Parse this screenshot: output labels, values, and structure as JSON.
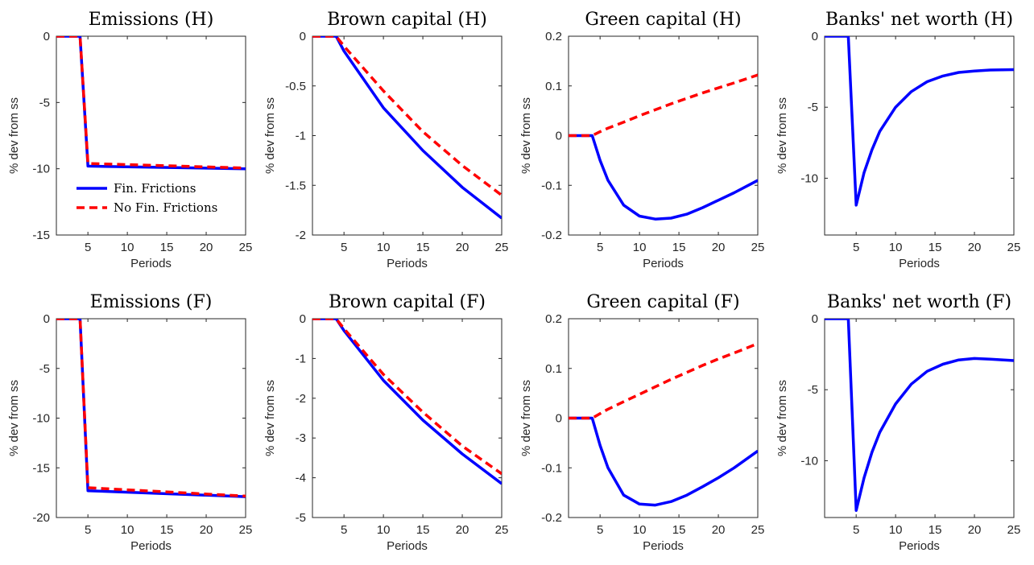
{
  "figure": {
    "series_styles": [
      {
        "name": "Fin. Frictions",
        "color": "#0000ff",
        "dash": "none"
      },
      {
        "name": "No Fin. Frictions",
        "color": "#ff0000",
        "dash": "10,6"
      }
    ],
    "legend": {
      "placement": "lower-left",
      "entries": [
        "Fin. Frictions",
        "No Fin. Frictions"
      ]
    }
  },
  "chart_data": [
    {
      "type": "line",
      "title": "Emissions (H)",
      "xlabel": "Periods",
      "ylabel": "% dev from ss",
      "xlim": [
        1,
        25
      ],
      "ylim": [
        -15,
        0
      ],
      "xticks": [
        5,
        10,
        15,
        20,
        25
      ],
      "yticks": [
        0,
        -5,
        -10,
        -15
      ],
      "legend": "lower-left",
      "x": [
        1,
        4,
        5,
        25
      ],
      "series": [
        {
          "name": "Fin. Frictions",
          "color": "#0000ff",
          "values": [
            0,
            0,
            -9.8,
            -10.0
          ]
        },
        {
          "name": "No Fin. Frictions",
          "color": "#ff0000",
          "dashed": true,
          "values": [
            0,
            0,
            -9.6,
            -9.95
          ]
        }
      ]
    },
    {
      "type": "line",
      "title": "Brown capital (H)",
      "xlabel": "Periods",
      "ylabel": "% dev from ss",
      "xlim": [
        1,
        25
      ],
      "ylim": [
        -2,
        0
      ],
      "xticks": [
        5,
        10,
        15,
        20,
        25
      ],
      "yticks": [
        0,
        -0.5,
        -1,
        -1.5,
        -2
      ],
      "x": [
        1,
        4,
        5,
        10,
        15,
        20,
        25
      ],
      "series": [
        {
          "name": "Fin. Frictions",
          "color": "#0000ff",
          "values": [
            0,
            0,
            -0.15,
            -0.72,
            -1.15,
            -1.52,
            -1.83
          ]
        },
        {
          "name": "No Fin. Frictions",
          "color": "#ff0000",
          "dashed": true,
          "values": [
            0,
            0,
            -0.1,
            -0.55,
            -0.96,
            -1.3,
            -1.6
          ]
        }
      ]
    },
    {
      "type": "line",
      "title": "Green capital (H)",
      "xlabel": "Periods",
      "ylabel": "% dev from ss",
      "xlim": [
        1,
        25
      ],
      "ylim": [
        -0.2,
        0.2
      ],
      "xticks": [
        5,
        10,
        15,
        20,
        25
      ],
      "yticks": [
        0.2,
        0.1,
        0,
        -0.1,
        -0.2
      ],
      "x": [
        1,
        4,
        5,
        6,
        8,
        10,
        12,
        14,
        16,
        18,
        20,
        22,
        25
      ],
      "series": [
        {
          "name": "Fin. Frictions",
          "color": "#0000ff",
          "values": [
            0,
            0,
            -0.05,
            -0.09,
            -0.14,
            -0.162,
            -0.168,
            -0.166,
            -0.158,
            -0.145,
            -0.13,
            -0.115,
            -0.09
          ]
        },
        {
          "name": "No Fin. Frictions",
          "color": "#ff0000",
          "dashed": true,
          "values": [
            0,
            0,
            0.008,
            0.015,
            0.027,
            0.04,
            0.052,
            0.064,
            0.075,
            0.086,
            0.096,
            0.106,
            0.122
          ]
        }
      ]
    },
    {
      "type": "line",
      "title": "Banks' net worth (H)",
      "xlabel": "Periods",
      "ylabel": "% dev from ss",
      "xlim": [
        1,
        25
      ],
      "ylim": [
        -14,
        0
      ],
      "xticks": [
        5,
        10,
        15,
        20,
        25
      ],
      "yticks": [
        0,
        -5,
        -10
      ],
      "x": [
        1,
        4,
        5,
        6,
        7,
        8,
        10,
        12,
        14,
        16,
        18,
        20,
        22,
        25
      ],
      "series": [
        {
          "name": "Fin. Frictions",
          "color": "#0000ff",
          "values": [
            0,
            0,
            -11.9,
            -9.6,
            -8.0,
            -6.7,
            -5.0,
            -3.9,
            -3.2,
            -2.8,
            -2.55,
            -2.45,
            -2.38,
            -2.35
          ]
        }
      ]
    },
    {
      "type": "line",
      "title": "Emissions (F)",
      "xlabel": "Periods",
      "ylabel": "% dev from ss",
      "xlim": [
        1,
        25
      ],
      "ylim": [
        -20,
        0
      ],
      "xticks": [
        5,
        10,
        15,
        20,
        25
      ],
      "yticks": [
        0,
        -5,
        -10,
        -15,
        -20
      ],
      "x": [
        1,
        4,
        5,
        25
      ],
      "series": [
        {
          "name": "Fin. Frictions",
          "color": "#0000ff",
          "values": [
            0,
            0,
            -17.3,
            -17.9
          ]
        },
        {
          "name": "No Fin. Frictions",
          "color": "#ff0000",
          "dashed": true,
          "values": [
            0,
            0,
            -17.0,
            -17.85
          ]
        }
      ]
    },
    {
      "type": "line",
      "title": "Brown capital (F)",
      "xlabel": "Periods",
      "ylabel": "% dev from ss",
      "xlim": [
        1,
        25
      ],
      "ylim": [
        -5,
        0
      ],
      "xticks": [
        5,
        10,
        15,
        20,
        25
      ],
      "yticks": [
        0,
        -1,
        -2,
        -3,
        -4,
        -5
      ],
      "x": [
        1,
        4,
        5,
        10,
        15,
        20,
        25
      ],
      "series": [
        {
          "name": "Fin. Frictions",
          "color": "#0000ff",
          "values": [
            0,
            0,
            -0.3,
            -1.55,
            -2.55,
            -3.4,
            -4.15
          ]
        },
        {
          "name": "No Fin. Frictions",
          "color": "#ff0000",
          "dashed": true,
          "values": [
            0,
            0,
            -0.25,
            -1.4,
            -2.35,
            -3.2,
            -3.9
          ]
        }
      ]
    },
    {
      "type": "line",
      "title": "Green capital (F)",
      "xlabel": "Periods",
      "ylabel": "% dev from ss",
      "xlim": [
        1,
        25
      ],
      "ylim": [
        -0.2,
        0.2
      ],
      "xticks": [
        5,
        10,
        15,
        20,
        25
      ],
      "yticks": [
        0.2,
        0.1,
        0,
        -0.1,
        -0.2
      ],
      "x": [
        1,
        4,
        5,
        6,
        8,
        10,
        12,
        14,
        16,
        18,
        20,
        22,
        25
      ],
      "series": [
        {
          "name": "Fin. Frictions",
          "color": "#0000ff",
          "values": [
            0,
            0,
            -0.055,
            -0.1,
            -0.155,
            -0.173,
            -0.175,
            -0.168,
            -0.155,
            -0.138,
            -0.12,
            -0.1,
            -0.066
          ]
        },
        {
          "name": "No Fin. Frictions",
          "color": "#ff0000",
          "dashed": true,
          "values": [
            0,
            0,
            0.009,
            0.018,
            0.033,
            0.048,
            0.063,
            0.078,
            0.092,
            0.106,
            0.119,
            0.131,
            0.15
          ]
        }
      ]
    },
    {
      "type": "line",
      "title": "Banks' net worth (F)",
      "xlabel": "Periods",
      "ylabel": "% dev from ss",
      "xlim": [
        1,
        25
      ],
      "ylim": [
        -14,
        0
      ],
      "xticks": [
        5,
        10,
        15,
        20,
        25
      ],
      "yticks": [
        0,
        -5,
        -10
      ],
      "x": [
        1,
        4,
        5,
        6,
        7,
        8,
        10,
        12,
        14,
        16,
        18,
        20,
        22,
        25
      ],
      "series": [
        {
          "name": "Fin. Frictions",
          "color": "#0000ff",
          "values": [
            0,
            0,
            -13.5,
            -11.2,
            -9.4,
            -8.0,
            -6.0,
            -4.6,
            -3.7,
            -3.2,
            -2.9,
            -2.8,
            -2.85,
            -2.95
          ]
        }
      ]
    }
  ]
}
